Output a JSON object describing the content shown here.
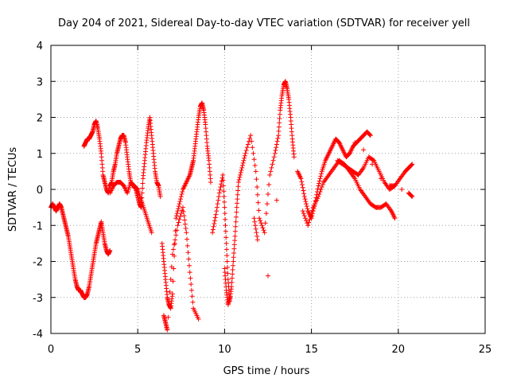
{
  "chart_data": {
    "type": "scatter",
    "title": "Day 204 of 2021, Sidereal Day-to-day VTEC variation (SDTVAR) for receiver yell",
    "xlabel": "GPS time / hours",
    "ylabel": "SDTVAR / TECUs",
    "xlim": [
      0,
      25
    ],
    "ylim": [
      -4,
      4
    ],
    "xticks": [
      0,
      5,
      10,
      15,
      20,
      25
    ],
    "yticks": [
      -4,
      -3,
      -2,
      -1,
      0,
      1,
      2,
      3,
      4
    ],
    "grid": true,
    "marker": "+",
    "color": "#ff0000",
    "series": [
      {
        "name": "SDTVAR",
        "x": [
          0.0,
          0.1,
          0.2,
          0.3,
          0.4,
          0.5,
          0.6,
          0.7,
          0.8,
          0.9,
          1.0,
          1.1,
          1.2,
          1.3,
          1.4,
          1.5,
          1.6,
          1.7,
          1.8,
          1.9,
          2.0,
          2.1,
          2.2,
          2.3,
          2.4,
          2.5,
          2.6,
          2.7,
          2.8,
          2.9,
          3.0,
          3.1,
          3.2,
          3.3,
          3.4,
          1.9,
          2.0,
          2.1,
          2.2,
          2.3,
          2.4,
          2.5,
          2.6,
          2.7,
          2.8,
          2.9,
          3.0,
          3.1,
          3.2,
          3.3,
          3.4,
          3.5,
          3.6,
          3.7,
          3.8,
          3.9,
          4.0,
          4.1,
          4.2,
          4.3,
          4.4,
          4.5,
          4.6,
          4.7,
          4.8,
          4.9,
          5.0,
          5.1,
          5.2,
          5.3,
          5.4,
          5.5,
          5.6,
          5.7,
          5.8,
          5.9,
          6.0,
          6.1,
          6.2,
          6.3,
          3.4,
          3.6,
          3.8,
          4.0,
          4.2,
          4.4,
          4.6,
          4.8,
          5.0,
          5.2,
          5.4,
          5.6,
          5.8,
          6.4,
          6.5,
          6.6,
          6.7,
          6.8,
          6.9,
          7.0,
          7.2,
          7.4,
          7.6,
          7.8,
          8.0,
          8.1,
          8.2,
          8.3,
          8.4,
          8.5,
          8.6,
          8.7,
          8.8,
          8.9,
          9.0,
          9.1,
          9.2,
          6.5,
          6.6,
          6.7,
          7.0,
          7.3,
          7.6,
          7.8,
          8.0,
          8.2,
          8.5,
          9.3,
          9.5,
          9.7,
          9.9,
          10.0,
          10.1,
          10.2,
          10.3,
          10.4,
          10.5,
          10.6,
          10.7,
          10.8,
          11.0,
          11.2,
          11.5,
          11.8,
          12.0,
          12.3,
          12.6,
          12.9,
          13.1,
          13.2,
          13.3,
          13.4,
          13.5,
          13.6,
          13.7,
          13.8,
          13.9,
          14.0,
          10.0,
          10.1,
          10.2,
          10.3,
          11.7,
          11.9,
          12.5,
          13.0,
          14.2,
          14.4,
          14.6,
          14.8,
          15.0,
          15.2,
          15.4,
          15.6,
          15.8,
          16.0,
          16.2,
          16.4,
          16.6,
          16.8,
          17.0,
          17.2,
          17.4,
          17.6,
          17.8,
          18.0,
          18.2,
          18.4,
          14.5,
          14.8,
          15.1,
          15.4,
          15.7,
          16.0,
          16.3,
          16.6,
          16.9,
          17.2,
          17.5,
          17.8,
          18.1,
          18.4,
          18.7,
          19.0,
          19.3,
          19.6,
          19.8,
          16.5,
          16.8,
          17.1,
          17.4,
          17.7,
          18.0,
          18.3,
          18.6,
          18.9,
          19.2,
          19.5,
          19.8,
          20.1,
          20.4,
          20.6,
          20.8,
          17.5,
          18.0,
          18.5,
          19.0,
          19.5,
          19.8,
          20.2,
          20.6,
          20.8
        ],
        "y": [
          -0.5,
          -0.4,
          -0.5,
          -0.6,
          -0.5,
          -0.4,
          -0.5,
          -0.7,
          -0.9,
          -1.1,
          -1.3,
          -1.6,
          -1.9,
          -2.2,
          -2.5,
          -2.7,
          -2.8,
          -2.8,
          -2.9,
          -3.0,
          -3.0,
          -2.9,
          -2.7,
          -2.4,
          -2.1,
          -1.8,
          -1.5,
          -1.3,
          -1.1,
          -0.9,
          -1.2,
          -1.5,
          -1.7,
          -1.8,
          -1.7,
          1.2,
          1.3,
          1.4,
          1.4,
          1.5,
          1.6,
          1.8,
          1.9,
          1.7,
          1.4,
          1.0,
          0.4,
          0.2,
          0.0,
          -0.1,
          0.1,
          0.2,
          0.5,
          0.7,
          1.0,
          1.2,
          1.4,
          1.5,
          1.5,
          1.3,
          0.9,
          0.5,
          0.2,
          0.1,
          0.1,
          0.0,
          -0.2,
          -0.4,
          -0.5,
          0.3,
          0.8,
          1.3,
          1.7,
          2.0,
          1.5,
          1.0,
          0.5,
          0.2,
          0.1,
          -0.2,
          -0.1,
          0.1,
          0.2,
          0.2,
          0.1,
          -0.1,
          0.2,
          0.1,
          0.0,
          -0.3,
          -0.6,
          -0.9,
          -1.2,
          -1.5,
          -2.0,
          -2.5,
          -3.0,
          -3.2,
          -3.3,
          -2.9,
          -0.8,
          -0.4,
          0.0,
          0.2,
          0.4,
          0.6,
          0.8,
          1.2,
          1.6,
          2.0,
          2.3,
          2.4,
          2.2,
          1.8,
          1.2,
          0.8,
          0.2,
          -3.5,
          -3.7,
          -3.9,
          -1.8,
          -1.0,
          -0.5,
          -1.2,
          -2.3,
          -3.3,
          -3.6,
          -1.2,
          -0.7,
          -0.1,
          0.4,
          -0.5,
          -1.5,
          -2.5,
          -3.1,
          -2.7,
          -2.0,
          -1.3,
          -0.5,
          0.2,
          0.6,
          1.0,
          1.5,
          0.5,
          -0.8,
          -1.2,
          0.4,
          1.0,
          1.5,
          2.2,
          2.6,
          2.9,
          3.0,
          2.8,
          2.5,
          2.0,
          1.4,
          0.9,
          -2.2,
          -2.8,
          -3.2,
          -3.0,
          -0.8,
          -1.4,
          -2.4,
          -0.3,
          0.5,
          0.3,
          -0.2,
          -0.6,
          -0.8,
          -0.4,
          0.1,
          0.5,
          0.8,
          1.0,
          1.2,
          1.4,
          1.3,
          1.1,
          0.9,
          1.0,
          1.2,
          1.3,
          1.4,
          1.5,
          1.6,
          1.5,
          -0.6,
          -1.0,
          -0.5,
          -0.2,
          0.2,
          0.4,
          0.6,
          0.8,
          0.7,
          0.5,
          0.3,
          0.0,
          -0.2,
          -0.4,
          -0.5,
          -0.5,
          -0.4,
          -0.6,
          -0.8,
          0.8,
          0.7,
          0.6,
          0.5,
          0.4,
          0.6,
          0.9,
          0.8,
          0.5,
          0.2,
          0.0,
          0.1,
          0.3,
          0.5,
          0.6,
          0.7,
          1.3,
          1.1,
          0.7,
          0.3,
          0.1,
          0.1,
          0.0,
          -0.1,
          -0.2
        ]
      }
    ]
  }
}
